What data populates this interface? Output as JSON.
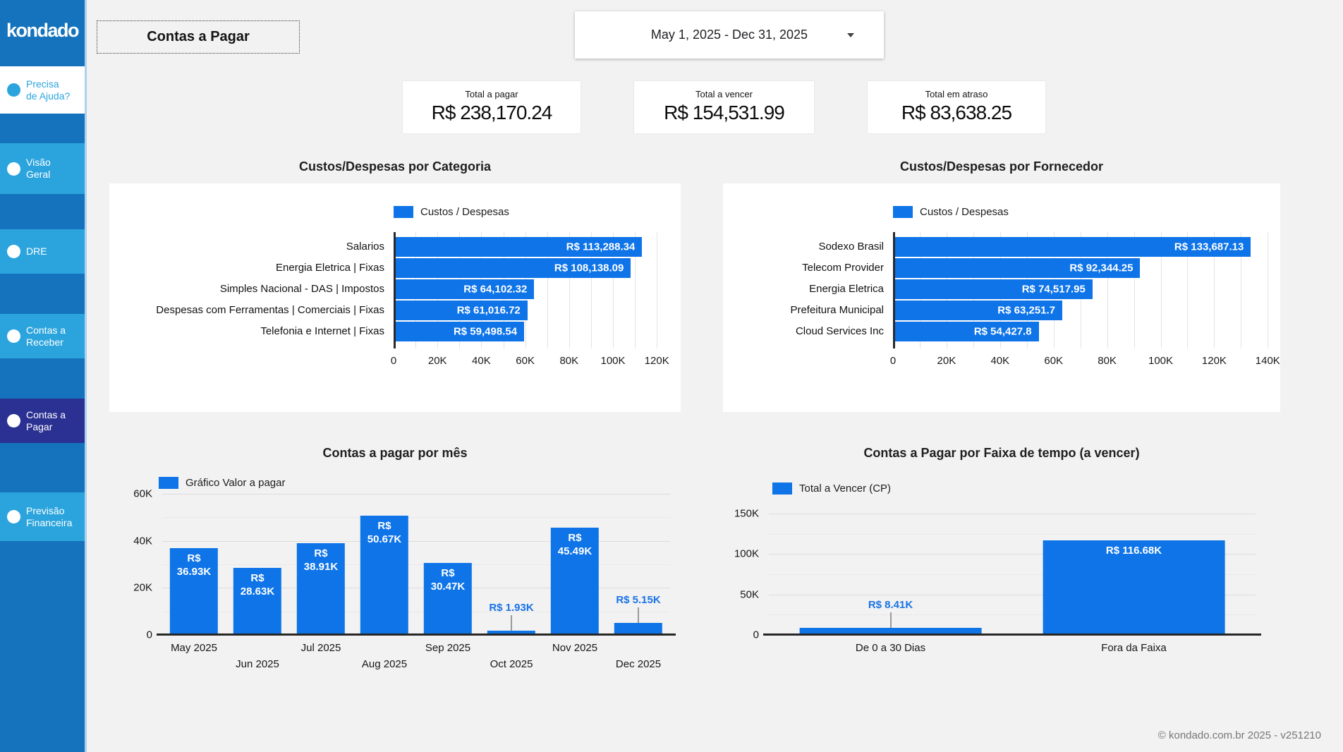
{
  "colors": {
    "background": "#f1f2f1",
    "sidebar": "#1473bc",
    "sidebar_item": "#2ba4dd",
    "sidebar_active": "#2b3192",
    "bar": "#0e74e8",
    "outside_label": "#1a73e8"
  },
  "sidebar": {
    "logo": "kondado",
    "help_label": "Precisa de Ajuda?",
    "items": [
      {
        "label": "Visão Geral",
        "active": false
      },
      {
        "label": "DRE",
        "active": false
      },
      {
        "label": "Contas a Receber",
        "active": false
      },
      {
        "label": "Contas a Pagar",
        "active": true
      },
      {
        "label": "Previsão Financeira",
        "active": false
      }
    ]
  },
  "header": {
    "page_title": "Contas a Pagar",
    "date_range": "May 1, 2025 - Dec 31, 2025"
  },
  "kpis": [
    {
      "label": "Total a pagar",
      "value": "R$ 238,170.24"
    },
    {
      "label": "Total a vencer",
      "value": "R$ 154,531.99"
    },
    {
      "label": "Total em atraso",
      "value": "R$ 83,638.25"
    }
  ],
  "footer": {
    "copyright": "© kondado.com.br 2025 - v251210"
  },
  "chart_data": [
    {
      "id": "categoria",
      "type": "bar",
      "orientation": "horizontal",
      "title": "Custos/Despesas por Categoria",
      "legend": "Custos / Despesas",
      "categories": [
        "Salarios",
        "Energia Eletrica | Fixas",
        "Simples Nacional - DAS | Impostos",
        "Despesas com Ferramentas | Comerciais | Fixas",
        "Telefonia e Internet | Fixas"
      ],
      "values": [
        113288.34,
        108138.09,
        64102.32,
        61016.72,
        59498.54
      ],
      "value_labels": [
        "R$ 113,288.34",
        "R$ 108,138.09",
        "R$ 64,102.32",
        "R$ 61,016.72",
        "R$ 59,498.54"
      ],
      "xlim": [
        0,
        127000
      ],
      "axis_max": 127000,
      "grid_step": 10000,
      "tick_values": [
        0,
        20000,
        40000,
        60000,
        80000,
        100000,
        120000
      ],
      "tick_labels": [
        "0",
        "20K",
        "40K",
        "60K",
        "80K",
        "100K",
        "120K"
      ],
      "legend_position": "top"
    },
    {
      "id": "fornecedor",
      "type": "bar",
      "orientation": "horizontal",
      "title": "Custos/Despesas por Fornecedor",
      "legend": "Custos / Despesas",
      "categories": [
        "Sodexo Brasil",
        "Telecom Provider",
        "Energia Eletrica",
        "Prefeitura Municipal",
        "Cloud Services Inc"
      ],
      "values": [
        133687.13,
        92344.25,
        74517.95,
        63251.7,
        54427.8
      ],
      "value_labels": [
        "R$ 133,687.13",
        "R$ 92,344.25",
        "R$ 74,517.95",
        "R$ 63,251.7",
        "R$ 54,427.8"
      ],
      "xlim": [
        0,
        141500
      ],
      "axis_max": 141500,
      "grid_step": 10000,
      "tick_values": [
        0,
        20000,
        40000,
        60000,
        80000,
        100000,
        120000,
        140000
      ],
      "tick_labels": [
        "0",
        "20K",
        "40K",
        "60K",
        "80K",
        "100K",
        "120K",
        "140K"
      ],
      "legend_position": "top"
    },
    {
      "id": "mes",
      "type": "bar",
      "orientation": "vertical",
      "title": "Contas a pagar por mês",
      "legend": "Gráfico Valor a pagar",
      "categories": [
        "May 2025",
        "Jun 2025",
        "Jul 2025",
        "Aug 2025",
        "Sep 2025",
        "Oct 2025",
        "Nov 2025",
        "Dec 2025"
      ],
      "values": [
        36930,
        28630,
        38910,
        50670,
        30470,
        1930,
        45490,
        5150
      ],
      "bar_labels": [
        "R$\n36.93K",
        "R$\n28.63K",
        "R$\n38.91K",
        "R$\n50.67K",
        "R$\n30.47K",
        "R$ 1.93K",
        "R$\n45.49K",
        "R$ 5.15K"
      ],
      "label_inside": [
        true,
        true,
        true,
        true,
        true,
        false,
        true,
        false
      ],
      "ylim": [
        0,
        60000
      ],
      "axis_max": 60000,
      "grid_step": 10000,
      "tick_values": [
        0,
        20000,
        40000,
        60000
      ],
      "tick_labels": [
        "0",
        "20K",
        "40K",
        "60K"
      ],
      "legend_position": "top-left"
    },
    {
      "id": "faixa",
      "type": "bar",
      "orientation": "vertical",
      "title": "Contas a Pagar por Faixa de tempo (a vencer)",
      "legend": "Total a Vencer (CP)",
      "categories": [
        "De 0 a 30 Dias",
        "Fora da Faixa"
      ],
      "values": [
        8410,
        116680
      ],
      "bar_labels": [
        "R$ 8.41K",
        "R$ 116.68K"
      ],
      "label_inside": [
        false,
        true
      ],
      "ylim": [
        0,
        150000
      ],
      "axis_max": 150000,
      "grid_step": 25000,
      "tick_values": [
        0,
        50000,
        100000,
        150000
      ],
      "tick_labels": [
        "0",
        "50K",
        "100K",
        "150K"
      ],
      "legend_position": "top-left"
    }
  ]
}
